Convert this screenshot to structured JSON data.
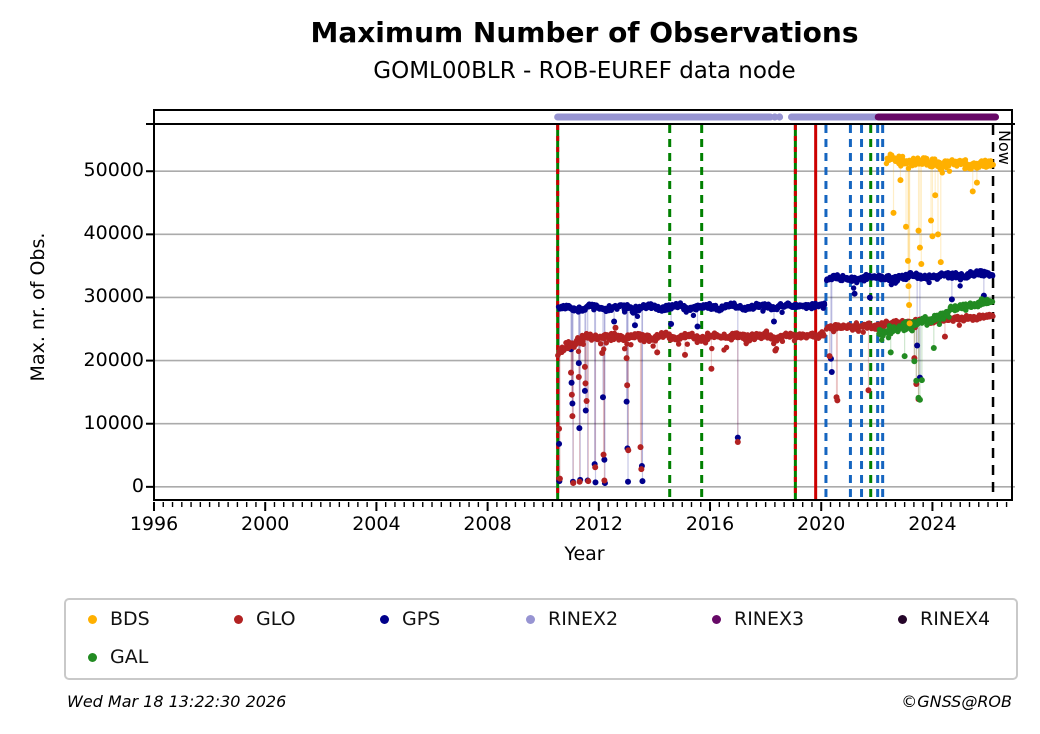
{
  "header": {
    "title": "Maximum Number of Observations",
    "subtitle": "GOML00BLR - ROB-EUREF data node"
  },
  "axes": {
    "x": {
      "label": "Year",
      "ticks": [
        "1996",
        "2000",
        "2004",
        "2008",
        "2012",
        "2016",
        "2020",
        "2024"
      ],
      "tick_years": [
        1996,
        2000,
        2004,
        2008,
        2012,
        2016,
        2020,
        2024
      ]
    },
    "y": {
      "label": "Max. nr. of Obs.",
      "ticks": [
        "0",
        "10000",
        "20000",
        "30000",
        "40000",
        "50000"
      ],
      "tick_values": [
        0,
        10000,
        20000,
        30000,
        40000,
        50000
      ]
    }
  },
  "legend": {
    "items": [
      {
        "label": "BDS",
        "color": "#FFB000"
      },
      {
        "label": "GLO",
        "color": "#B22222"
      },
      {
        "label": "GPS",
        "color": "#00008B"
      },
      {
        "label": "RINEX2",
        "color": "#9794D2"
      },
      {
        "label": "RINEX3",
        "color": "#670967"
      },
      {
        "label": "RINEX4",
        "color": "#250529"
      },
      {
        "label": "GAL",
        "color": "#228B22"
      }
    ]
  },
  "annotations": {
    "now_label": "Now"
  },
  "footer": {
    "timestamp": "Wed Mar 18 13:22:30 2026",
    "copyright": "©GNSS@ROB"
  },
  "chart_data": {
    "type": "scatter",
    "title": "Maximum Number of Observations",
    "subtitle": "GOML00BLR - ROB-EUREF data node",
    "xlabel": "Year",
    "ylabel": "Max. nr. of Obs.",
    "xlim": [
      1996,
      2026.97
    ],
    "ylim": [
      -2400,
      59700
    ],
    "grid": "horizontal",
    "grid_color": "#ABABAB",
    "now_year": 2026.18,
    "series": [
      {
        "name": "GPS",
        "color": "#00008B",
        "bands": [
          {
            "x0": 2010.55,
            "x1": 2019.02,
            "v0": 28300,
            "v1": 28600,
            "sigma": 420,
            "wave": 280,
            "period": 1.0,
            "tail": 0.1,
            "tail_depth": 1600
          },
          {
            "x0": 2019.06,
            "x1": 2020.12,
            "v0": 28600,
            "v1": 28800,
            "sigma": 380,
            "wave": 0,
            "period": 1.0,
            "tail": 0.06,
            "tail_depth": 1000
          },
          {
            "x0": 2020.2,
            "x1": 2026.18,
            "v0": 32900,
            "v1": 33700,
            "sigma": 480,
            "wave": 200,
            "period": 1.3,
            "tail": 0.07,
            "tail_depth": 1500
          }
        ],
        "outliers": [
          [
            2010.57,
            6800
          ],
          [
            2010.58,
            900
          ],
          [
            2011.0,
            21800
          ],
          [
            2011.02,
            16500
          ],
          [
            2011.05,
            13200
          ],
          [
            2011.07,
            800
          ],
          [
            2011.28,
            19600
          ],
          [
            2011.3,
            9300
          ],
          [
            2011.33,
            1100
          ],
          [
            2011.5,
            15200
          ],
          [
            2011.53,
            12100
          ],
          [
            2011.6,
            1000
          ],
          [
            2011.85,
            3600
          ],
          [
            2011.88,
            700
          ],
          [
            2012.15,
            14200
          ],
          [
            2012.2,
            4300
          ],
          [
            2012.22,
            600
          ],
          [
            2012.55,
            26200
          ],
          [
            2013.0,
            13500
          ],
          [
            2013.03,
            6100
          ],
          [
            2013.05,
            800
          ],
          [
            2013.3,
            25600
          ],
          [
            2013.55,
            3300
          ],
          [
            2013.57,
            900
          ],
          [
            2014.6,
            25800
          ],
          [
            2015.55,
            25400
          ],
          [
            2017.0,
            7800
          ],
          [
            2018.3,
            26200
          ],
          [
            2020.35,
            20300
          ],
          [
            2020.38,
            18200
          ],
          [
            2021.2,
            30600
          ],
          [
            2021.75,
            30000
          ],
          [
            2023.45,
            22400
          ],
          [
            2023.55,
            17300
          ],
          [
            2024.7,
            29700
          ],
          [
            2025.85,
            30300
          ]
        ]
      },
      {
        "name": "GLO",
        "color": "#B22222",
        "bands": [
          {
            "x0": 2010.55,
            "x1": 2011.4,
            "v0": 21300,
            "v1": 23600,
            "sigma": 650,
            "wave": 0,
            "period": 1.0,
            "tail": 0.15,
            "tail_depth": 1500
          },
          {
            "x0": 2011.4,
            "x1": 2019.02,
            "v0": 23700,
            "v1": 23900,
            "sigma": 480,
            "wave": 250,
            "period": 0.9,
            "tail": 0.12,
            "tail_depth": 2200
          },
          {
            "x0": 2019.06,
            "x1": 2020.12,
            "v0": 23900,
            "v1": 24100,
            "sigma": 420,
            "wave": 0,
            "period": 1.0,
            "tail": 0.08,
            "tail_depth": 1200
          },
          {
            "x0": 2020.2,
            "x1": 2022.3,
            "v0": 25300,
            "v1": 25600,
            "sigma": 430,
            "wave": 0,
            "period": 1.0,
            "tail": 0.1,
            "tail_depth": 1500
          },
          {
            "x0": 2022.3,
            "x1": 2026.18,
            "v0": 25800,
            "v1": 27100,
            "sigma": 380,
            "wave": 0,
            "period": 1.0,
            "tail": 0.08,
            "tail_depth": 1200
          }
        ],
        "outliers": [
          [
            2010.57,
            9200
          ],
          [
            2010.6,
            1300
          ],
          [
            2011.0,
            18100
          ],
          [
            2011.03,
            14600
          ],
          [
            2011.05,
            11200
          ],
          [
            2011.08,
            600
          ],
          [
            2011.28,
            17400
          ],
          [
            2011.31,
            800
          ],
          [
            2011.5,
            19000
          ],
          [
            2011.52,
            16400
          ],
          [
            2011.56,
            13600
          ],
          [
            2011.62,
            900
          ],
          [
            2011.87,
            3100
          ],
          [
            2012.12,
            21200
          ],
          [
            2012.17,
            5100
          ],
          [
            2012.2,
            1000
          ],
          [
            2012.6,
            25200
          ],
          [
            2013.0,
            20400
          ],
          [
            2013.02,
            16100
          ],
          [
            2013.06,
            5800
          ],
          [
            2013.3,
            24200
          ],
          [
            2013.5,
            6300
          ],
          [
            2013.53,
            2800
          ],
          [
            2014.1,
            21300
          ],
          [
            2015.1,
            20900
          ],
          [
            2016.05,
            18700
          ],
          [
            2017.0,
            7100
          ],
          [
            2018.35,
            21600
          ],
          [
            2020.3,
            20700
          ],
          [
            2020.55,
            14200
          ],
          [
            2020.58,
            13700
          ],
          [
            2021.7,
            15300
          ],
          [
            2023.35,
            20400
          ],
          [
            2023.42,
            16300
          ],
          [
            2023.5,
            13900
          ],
          [
            2024.45,
            23800
          ]
        ]
      },
      {
        "name": "GAL",
        "color": "#228B22",
        "bands": [
          {
            "x0": 2022.05,
            "x1": 2024.6,
            "v0": 24300,
            "v1": 27300,
            "sigma": 650,
            "wave": 0,
            "period": 1.0,
            "tail": 0.12,
            "tail_depth": 1800
          },
          {
            "x0": 2024.6,
            "x1": 2026.18,
            "v0": 28200,
            "v1": 29500,
            "sigma": 520,
            "wave": 0,
            "period": 1.0,
            "tail": 0.06,
            "tail_depth": 1000
          }
        ],
        "outliers": [
          [
            2022.5,
            21300
          ],
          [
            2023.0,
            20700
          ],
          [
            2023.35,
            19900
          ],
          [
            2023.42,
            16800
          ],
          [
            2023.5,
            14100
          ],
          [
            2023.55,
            13800
          ],
          [
            2023.62,
            16900
          ],
          [
            2024.05,
            22000
          ]
        ]
      },
      {
        "name": "BDS",
        "color": "#FFB000",
        "bands": [
          {
            "x0": 2022.33,
            "x1": 2026.18,
            "v0": 51800,
            "v1": 50800,
            "sigma": 750,
            "wave": 300,
            "period": 1.1,
            "tail": 0.12,
            "tail_depth": 2000
          }
        ],
        "outliers": [
          [
            2022.6,
            43400
          ],
          [
            2022.85,
            48600
          ],
          [
            2023.05,
            41200
          ],
          [
            2023.12,
            35800
          ],
          [
            2023.14,
            31800
          ],
          [
            2023.16,
            28800
          ],
          [
            2023.18,
            25900
          ],
          [
            2023.5,
            40600
          ],
          [
            2023.55,
            37900
          ],
          [
            2023.6,
            35300
          ],
          [
            2023.95,
            42200
          ],
          [
            2024.0,
            39700
          ],
          [
            2024.1,
            46200
          ],
          [
            2024.2,
            40000
          ],
          [
            2024.3,
            35600
          ],
          [
            2025.45,
            46800
          ],
          [
            2025.6,
            48200
          ]
        ]
      }
    ],
    "event_lines": [
      {
        "year": 2010.52,
        "color": "#008000",
        "style": "solid",
        "overlay": "#CC0000"
      },
      {
        "year": 2014.55,
        "color": "#008000",
        "style": "dashed"
      },
      {
        "year": 2015.7,
        "color": "#008000",
        "style": "dashed"
      },
      {
        "year": 2019.07,
        "color": "#008000",
        "style": "solid",
        "overlay": "#CC0000"
      },
      {
        "year": 2019.8,
        "color": "#CC0000",
        "style": "solid"
      },
      {
        "year": 2020.17,
        "color": "#1565C0",
        "style": "dashed"
      },
      {
        "year": 2021.05,
        "color": "#1565C0",
        "style": "dashed"
      },
      {
        "year": 2021.45,
        "color": "#1565C0",
        "style": "dashed"
      },
      {
        "year": 2021.78,
        "color": "#008000",
        "style": "dashed"
      },
      {
        "year": 2022.03,
        "color": "#1565C0",
        "style": "dashed"
      },
      {
        "year": 2022.21,
        "color": "#1565C0",
        "style": "dashed"
      },
      {
        "year": 2026.18,
        "color": "#000000",
        "style": "dashed",
        "name": "now-line"
      }
    ],
    "rinex_bars": [
      {
        "name": "RINEX2",
        "color": "#9794D2",
        "segments": [
          [
            2010.52,
            2018.17
          ],
          [
            2018.93,
            2021.96
          ]
        ],
        "dots": [
          2018.33,
          2018.5
        ]
      },
      {
        "name": "RINEX3",
        "color": "#670967",
        "segments": [
          [
            2022.05,
            2026.27
          ]
        ],
        "dots": []
      }
    ]
  }
}
